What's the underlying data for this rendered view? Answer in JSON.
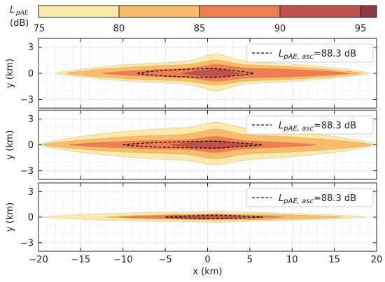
{
  "chart_data": {
    "type": "contour",
    "colorbar": {
      "label_main": "L",
      "label_sub": "pAE",
      "unit": "(dB)",
      "ticks": [
        "75",
        "80",
        "85",
        "90",
        "95"
      ],
      "levels": [
        75,
        80,
        85,
        90,
        95,
        96
      ],
      "colors": [
        "#fbeaa9",
        "#f9bc6c",
        "#ef7d50",
        "#c1514f",
        "#8c3a4a"
      ]
    },
    "xlabel": "x (km)",
    "ylabel": "y (km)",
    "x_ticks": [
      "−20",
      "−15",
      "−10",
      "−5",
      "0",
      "5",
      "10",
      "15",
      "20"
    ],
    "y_ticks": [
      "3",
      "0",
      "−3"
    ],
    "xlim": [
      -20,
      20
    ],
    "ylim": [
      -4,
      4
    ],
    "grid": true,
    "legend_position": "top-right",
    "panels": [
      {
        "legend_prefix": "L",
        "legend_sub": "pAE, asc",
        "legend_value": "=88.3 dB",
        "contours": [
          {
            "level": 75,
            "x_min": -18,
            "x_max": 19.3,
            "half_width": 1.35,
            "bulge": 2.2
          },
          {
            "level": 80,
            "x_min": -16.8,
            "x_max": 18.3,
            "half_width": 1.0,
            "bulge": 1.5
          },
          {
            "level": 85,
            "x_min": -12.5,
            "x_max": 16.8,
            "half_width": 0.6,
            "bulge": 1.0
          },
          {
            "level": 90,
            "x_min": -3,
            "x_max": 4,
            "half_width": 0.3,
            "bulge": 0.5
          }
        ],
        "dashed_contour": {
          "x_min": -8.3,
          "x_max": 5.5,
          "half_width": 0.45
        }
      },
      {
        "legend_prefix": "L",
        "legend_sub": "pAE, asc",
        "legend_value": "=88.3 dB",
        "contours": [
          {
            "level": 75,
            "x_min": -20,
            "x_max": 20,
            "half_width": 2.0,
            "bulge": 2.6
          },
          {
            "level": 80,
            "x_min": -19.5,
            "x_max": 19.5,
            "half_width": 1.2,
            "bulge": 1.8
          },
          {
            "level": 85,
            "x_min": -16.5,
            "x_max": 13,
            "half_width": 0.55,
            "bulge": 1.0
          },
          {
            "level": 90,
            "x_min": -4.5,
            "x_max": 5.5,
            "half_width": 0.3,
            "bulge": 0.5
          }
        ],
        "dashed_contour": {
          "x_min": -10,
          "x_max": 6.5,
          "half_width": 0.35
        }
      },
      {
        "legend_prefix": "L",
        "legend_sub": "pAE, asc",
        "legend_value": "=88.3 dB",
        "contours": [
          {
            "level": 75,
            "x_min": -19.8,
            "x_max": 18.8,
            "half_width": 0.6,
            "bulge": 0.7
          },
          {
            "level": 80,
            "x_min": -12,
            "x_max": 16,
            "half_width": 0.35,
            "bulge": 0.4
          },
          {
            "level": 85,
            "x_min": -10.5,
            "x_max": 9,
            "half_width": 0.25,
            "bulge": 0.3
          },
          {
            "level": 90,
            "x_min": -4,
            "x_max": 4.5,
            "half_width": 0.12,
            "bulge": 0.15
          }
        ],
        "dashed_contour": {
          "x_min": -5,
          "x_max": 6.5,
          "half_width": 0.17
        }
      }
    ]
  }
}
